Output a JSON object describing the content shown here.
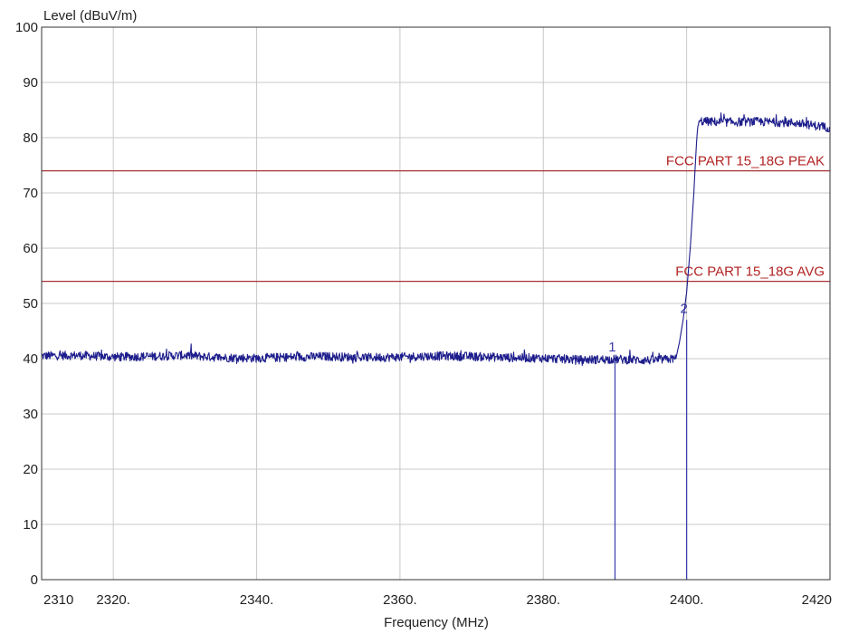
{
  "chart_data": {
    "type": "line",
    "ylabel": "Level (dBuV/m)",
    "xlabel": "Frequency (MHz)",
    "xlim": [
      2310,
      2420
    ],
    "ylim": [
      0,
      100
    ],
    "grid": true,
    "x_ticks": [
      {
        "value": 2310,
        "label": "2310"
      },
      {
        "value": 2320,
        "label": "2320."
      },
      {
        "value": 2340,
        "label": "2340."
      },
      {
        "value": 2360,
        "label": "2360."
      },
      {
        "value": 2380,
        "label": "2380."
      },
      {
        "value": 2400,
        "label": "2400."
      },
      {
        "value": 2420,
        "label": "2420"
      }
    ],
    "y_ticks": [
      {
        "value": 0,
        "label": "0"
      },
      {
        "value": 10,
        "label": "10"
      },
      {
        "value": 20,
        "label": "20"
      },
      {
        "value": 30,
        "label": "30"
      },
      {
        "value": 40,
        "label": "40"
      },
      {
        "value": 50,
        "label": "50"
      },
      {
        "value": 60,
        "label": "60"
      },
      {
        "value": 70,
        "label": "70"
      },
      {
        "value": 80,
        "label": "80"
      },
      {
        "value": 90,
        "label": "90"
      },
      {
        "value": 100,
        "label": "100"
      }
    ],
    "limit_lines": [
      {
        "label": "FCC PART 15_18G PEAK",
        "value": 74,
        "color": "#a83232"
      },
      {
        "label": "FCC PART 15_18G AVG",
        "value": 54,
        "color": "#a83232"
      }
    ],
    "series": [
      {
        "color": "#1c1c8c",
        "x": [
          2310,
          2315,
          2320,
          2325,
          2330,
          2335,
          2340,
          2345,
          2350,
          2355,
          2360,
          2365,
          2370,
          2375,
          2380,
          2385,
          2390,
          2395,
          2398.5,
          2399,
          2399.5,
          2400,
          2400.5,
          2401,
          2401.5,
          2402,
          2405,
          2410,
          2415,
          2420
        ],
        "y": [
          40.5,
          40.6,
          40.3,
          40.4,
          40.6,
          40.2,
          40.1,
          40.3,
          40.4,
          40.2,
          40.3,
          40.5,
          40.4,
          40.2,
          40.1,
          39.8,
          39.9,
          39.7,
          40.0,
          43,
          47,
          52,
          60,
          70,
          82,
          83,
          82.8,
          82.9,
          82.7,
          81.8
        ]
      }
    ],
    "markers": [
      {
        "label": "1",
        "x": 2390,
        "y": 40
      },
      {
        "label": "2",
        "x": 2400,
        "y": 47
      }
    ],
    "colors": {
      "grid": "#c8c8c8",
      "frame": "#333333",
      "trace": "#1c1c8c",
      "marker_line": "#3a3aa8",
      "limit": "#a83232"
    }
  }
}
